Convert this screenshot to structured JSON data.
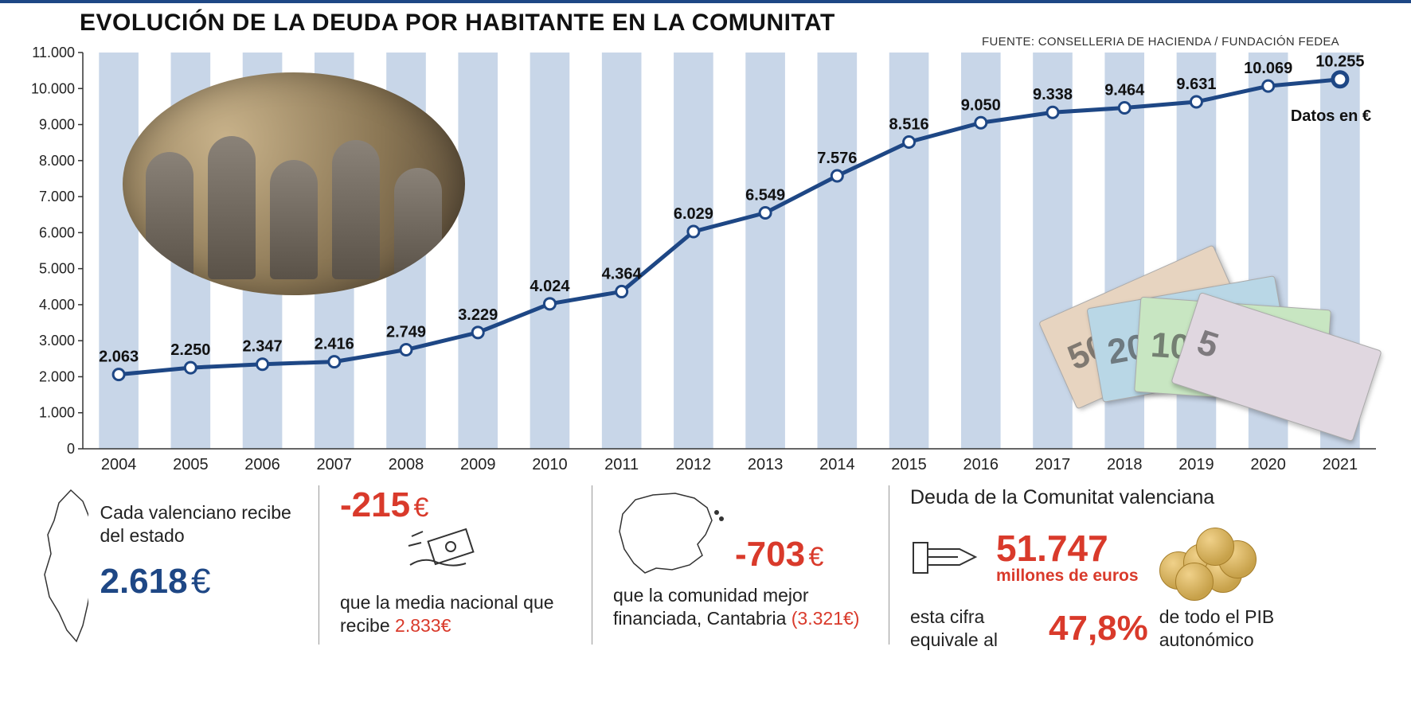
{
  "header": {
    "title": "EVOLUCIÓN DE LA DEUDA POR HABITANTE EN LA COMUNITAT",
    "source": "FUENTE: CONSELLERIA DE HACIENDA / FUNDACIÓN FEDEA"
  },
  "chart": {
    "type": "line",
    "units_note": "Datos en €",
    "years": [
      "2004",
      "2005",
      "2006",
      "2007",
      "2008",
      "2009",
      "2010",
      "2011",
      "2012",
      "2013",
      "2014",
      "2015",
      "2016",
      "2017",
      "2018",
      "2019",
      "2020",
      "2021"
    ],
    "values": [
      2063,
      2250,
      2347,
      2416,
      2749,
      3229,
      4024,
      4364,
      6029,
      6549,
      7576,
      8516,
      9050,
      9338,
      9464,
      9631,
      10069,
      10255
    ],
    "value_labels": [
      "2.063",
      "2.250",
      "2.347",
      "2.416",
      "2.749",
      "3.229",
      "4.024",
      "4.364",
      "6.029",
      "6.549",
      "7.576",
      "8.516",
      "9.050",
      "9.338",
      "9.464",
      "9.631",
      "10.069",
      "10.255"
    ],
    "y_ticks": [
      0,
      1000,
      2000,
      3000,
      4000,
      5000,
      6000,
      7000,
      8000,
      9000,
      10000,
      11000
    ],
    "y_tick_labels": [
      "0",
      "1.000",
      "2.000",
      "3.000",
      "4.000",
      "5.000",
      "6.000",
      "7.000",
      "8.000",
      "9.000",
      "10.000",
      "11.000"
    ],
    "ylim": [
      0,
      11000
    ],
    "colors": {
      "line": "#1e4785",
      "marker_fill": "#ffffff",
      "marker_stroke": "#1e4785",
      "bar_fill": "#c8d6e8",
      "axis": "#333333",
      "background": "#ffffff"
    },
    "line_width": 5,
    "marker_radius": 7,
    "bar_width_ratio": 0.55,
    "label_fontsize": 20,
    "y_label_fontsize": 18,
    "x_label_fontsize": 20
  },
  "bottom": {
    "cell1": {
      "text": "Cada valenciano recibe del estado",
      "value": "2.618",
      "currency": "€"
    },
    "cell2": {
      "value": "-215",
      "currency": "€",
      "text_a": "que la media nacional que recibe",
      "ref_value": "2.833€"
    },
    "cell3": {
      "value": "-703",
      "currency": "€",
      "text_a": "que la comunidad mejor financiada, Cantabria",
      "ref_value": "(3.321€)"
    },
    "cell4": {
      "heading": "Deuda de la Comunitat valenciana",
      "amount": "51.747",
      "amount_unit": "millones de euros",
      "line2_a": "esta cifra equivale al",
      "percent": "47,8%",
      "line2_b": "de todo el PIB autonómico"
    }
  },
  "colors": {
    "top_rule": "#1e4785",
    "title": "#111111",
    "blue": "#1e4785",
    "red": "#d93a2b",
    "body": "#222222",
    "divider": "#999999"
  }
}
